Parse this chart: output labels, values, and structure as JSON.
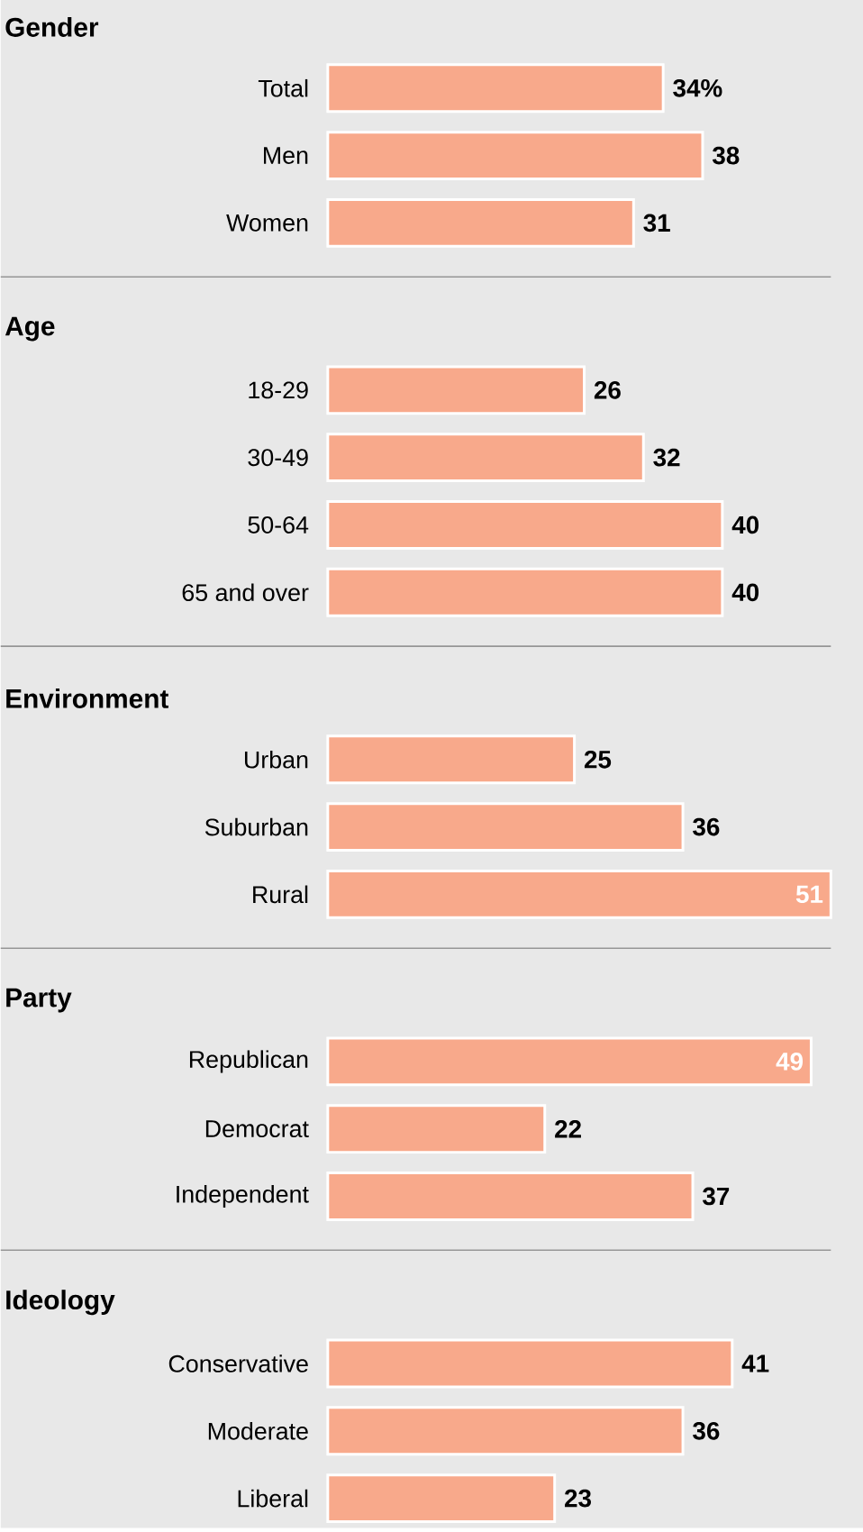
{
  "chart_data": [
    {
      "type": "bar",
      "orientation": "horizontal",
      "title": "Gender",
      "categories": [
        "Total",
        "Men",
        "Women"
      ],
      "values": [
        34,
        38,
        31
      ],
      "value_labels": [
        "34%",
        "38",
        "31"
      ],
      "color": "#f8a98b"
    },
    {
      "type": "bar",
      "orientation": "horizontal",
      "title": "Age",
      "categories": [
        "18-29",
        "30-49",
        "50-64",
        "65 and over"
      ],
      "values": [
        26,
        32,
        40,
        40
      ],
      "data_labels": true,
      "color": "#f8a98b"
    },
    {
      "type": "bar",
      "orientation": "horizontal",
      "title": "Environment",
      "categories": [
        "Urban",
        "Suburban",
        "Rural"
      ],
      "values": [
        25,
        36,
        51
      ],
      "data_labels": true,
      "color": "#f8a98b"
    },
    {
      "type": "bar",
      "orientation": "horizontal",
      "title": "Party",
      "categories": [
        "Republican",
        "Democrat",
        "Independent"
      ],
      "values": [
        49,
        22,
        37
      ],
      "data_labels": true,
      "color": "#f8a98b"
    },
    {
      "type": "bar",
      "orientation": "horizontal",
      "title": "Ideology",
      "categories": [
        "Conservative",
        "Moderate",
        "Liberal"
      ],
      "values": [
        41,
        36,
        23
      ],
      "data_labels": true,
      "color": "#f8a98b"
    }
  ]
}
